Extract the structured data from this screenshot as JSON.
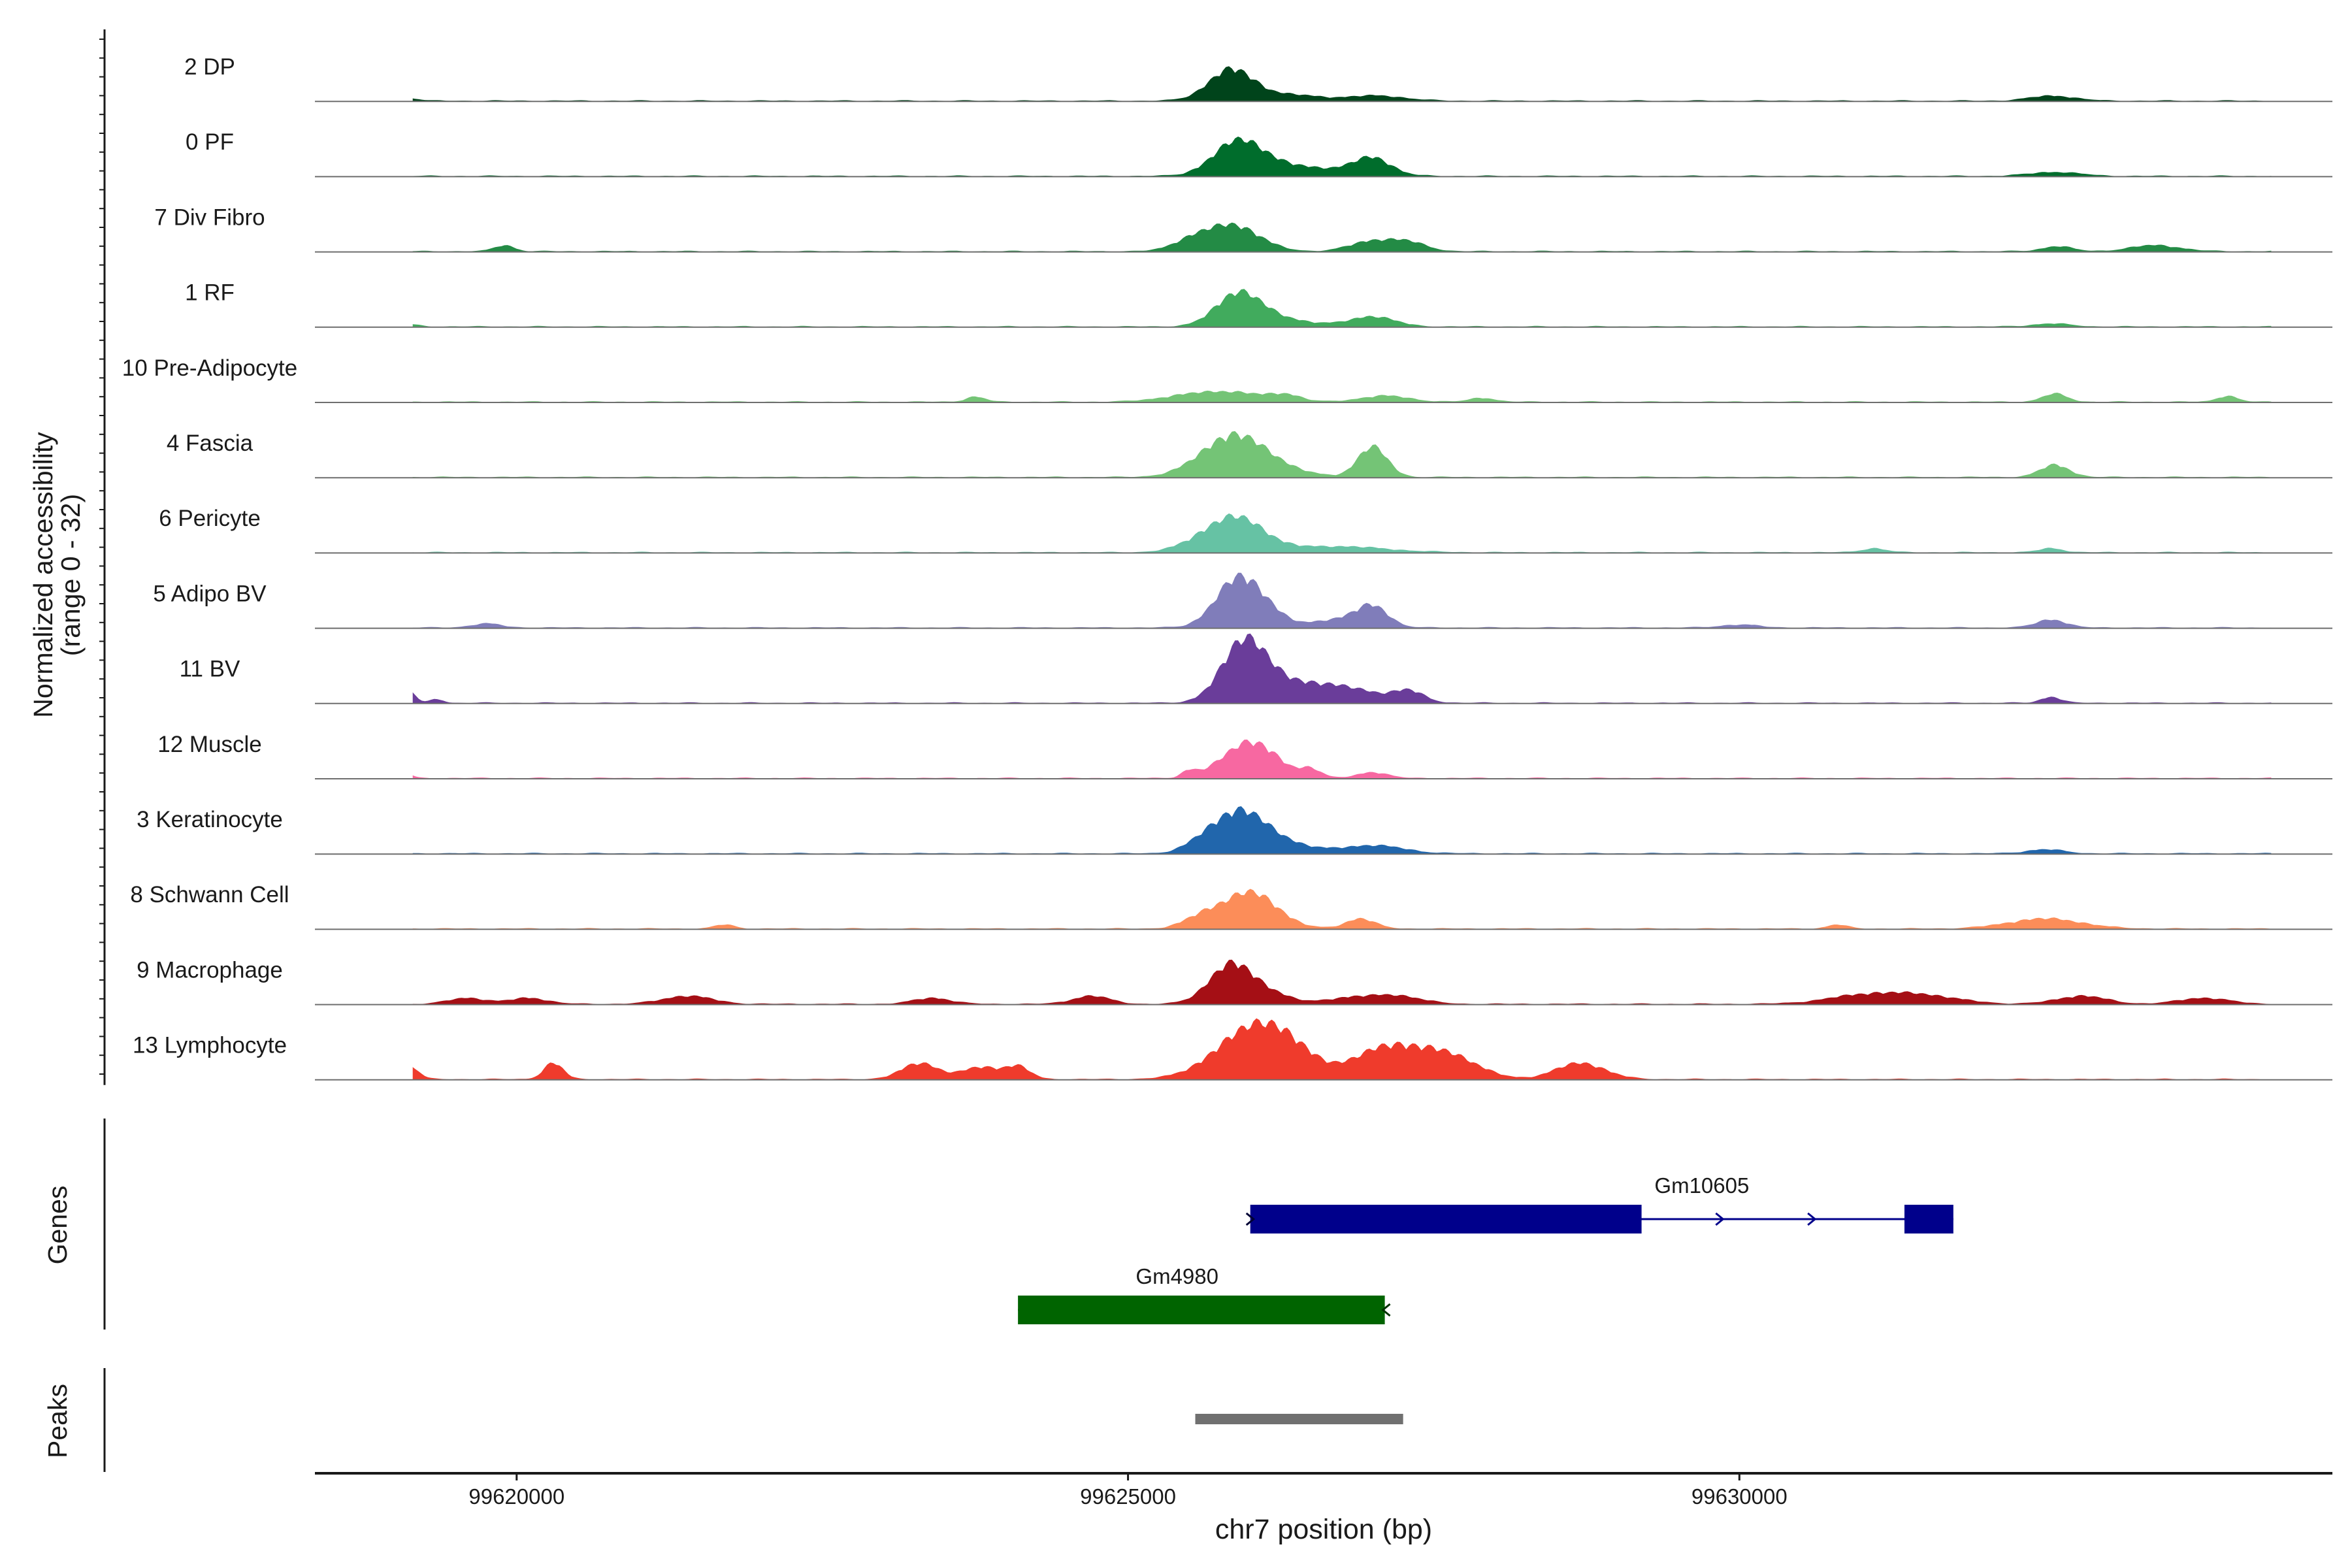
{
  "chart_data": {
    "type": "area",
    "title": "",
    "ylabel_line1": "Normalized accessibility",
    "ylabel_line2": "(range 0 - 32)",
    "xlabel": "chr7 position (bp)",
    "xlim": [
      99618350,
      99634850
    ],
    "ylim": [
      0,
      32
    ],
    "xticks": [
      99620000,
      99625000,
      99630000
    ],
    "xtick_labels": [
      "99620000",
      "99625000",
      "99630000"
    ],
    "tracks": [
      {
        "name": "2 DP",
        "color": "#00441b",
        "peaks": [
          [
            99625840,
            15,
            180
          ],
          [
            99626300,
            3,
            280
          ],
          [
            99627040,
            2.5,
            220
          ],
          [
            99632560,
            2.5,
            180
          ],
          [
            99619150,
            1.2,
            60
          ]
        ]
      },
      {
        "name": "0 PF",
        "color": "#006d2c",
        "peaks": [
          [
            99625900,
            16,
            200
          ],
          [
            99626250,
            4,
            300
          ],
          [
            99627000,
            8,
            150
          ],
          [
            99626700,
            2,
            300
          ],
          [
            99632580,
            2,
            200
          ]
        ]
      },
      {
        "name": "7 Div Fibro",
        "color": "#238b45",
        "peaks": [
          [
            99625850,
            13,
            220
          ],
          [
            99625500,
            4,
            150
          ],
          [
            99627000,
            5,
            180
          ],
          [
            99627300,
            4,
            150
          ],
          [
            99619900,
            3,
            80
          ],
          [
            99633400,
            3,
            200
          ],
          [
            99632600,
            2.5,
            120
          ]
        ]
      },
      {
        "name": "1 RF",
        "color": "#41ab5d",
        "peaks": [
          [
            99625900,
            15,
            180
          ],
          [
            99626200,
            4,
            280
          ],
          [
            99627000,
            5,
            180
          ],
          [
            99632550,
            1.5,
            150
          ],
          [
            99619150,
            1,
            60
          ]
        ]
      },
      {
        "name": "10 Pre-Adipocyte",
        "color": "#74c476",
        "peaks": [
          [
            99625500,
            3,
            250
          ],
          [
            99625900,
            4,
            250
          ],
          [
            99626300,
            3,
            120
          ],
          [
            99627100,
            3,
            200
          ],
          [
            99627900,
            2,
            100
          ],
          [
            99623750,
            2.5,
            80
          ],
          [
            99632580,
            4,
            100
          ],
          [
            99633990,
            3,
            80
          ]
        ]
      },
      {
        "name": "4 Fascia",
        "color": "#74c476",
        "peaks": [
          [
            99625850,
            18,
            260
          ],
          [
            99626100,
            4,
            300
          ],
          [
            99627000,
            15,
            120
          ],
          [
            99632580,
            6,
            120
          ]
        ]
      },
      {
        "name": "6 Pericyte",
        "color": "#66c2a4",
        "peaks": [
          [
            99625900,
            16,
            220
          ],
          [
            99625600,
            4,
            200
          ],
          [
            99626700,
            3,
            400
          ],
          [
            99631100,
            2,
            100
          ],
          [
            99632550,
            2,
            100
          ]
        ]
      },
      {
        "name": "5 Adipo BV",
        "color": "#807dba",
        "peaks": [
          [
            99625900,
            24,
            180
          ],
          [
            99626150,
            5,
            150
          ],
          [
            99626700,
            4,
            200
          ],
          [
            99627000,
            10,
            130
          ],
          [
            99619750,
            2,
            120
          ],
          [
            99632550,
            4,
            120
          ],
          [
            99630000,
            1.5,
            150
          ]
        ]
      },
      {
        "name": "11 BV",
        "color": "#6a3d9a",
        "peaks": [
          [
            99625950,
            28,
            180
          ],
          [
            99626300,
            8,
            300
          ],
          [
            99626800,
            6,
            300
          ],
          [
            99627300,
            5,
            120
          ],
          [
            99619100,
            7,
            60
          ],
          [
            99632550,
            3,
            80
          ],
          [
            99619350,
            2,
            50
          ]
        ]
      },
      {
        "name": "12 Muscle",
        "color": "#f768a1",
        "peaks": [
          [
            99626000,
            18,
            220
          ],
          [
            99625500,
            3,
            60
          ],
          [
            99626500,
            4,
            80
          ],
          [
            99627000,
            3,
            120
          ],
          [
            99619100,
            2,
            50
          ]
        ]
      },
      {
        "name": "3 Keratinocyte",
        "color": "#2166ac",
        "peaks": [
          [
            99625900,
            18,
            200
          ],
          [
            99626200,
            6,
            250
          ],
          [
            99627000,
            4,
            250
          ],
          [
            99625600,
            4,
            150
          ],
          [
            99632500,
            2,
            150
          ]
        ]
      },
      {
        "name": "8 Schwann Cell",
        "color": "#fc8d59",
        "peaks": [
          [
            99626000,
            18,
            220
          ],
          [
            99625600,
            5,
            150
          ],
          [
            99626900,
            5,
            120
          ],
          [
            99632500,
            5,
            300
          ],
          [
            99621700,
            2,
            80
          ],
          [
            99630800,
            2,
            80
          ]
        ]
      },
      {
        "name": "9 Macrophage",
        "color": "#a50f15",
        "peaks": [
          [
            99625850,
            20,
            180
          ],
          [
            99626200,
            4,
            150
          ],
          [
            99621400,
            4,
            200
          ],
          [
            99624700,
            4,
            150
          ],
          [
            99626800,
            3,
            200
          ],
          [
            99627200,
            4,
            200
          ],
          [
            99631000,
            4,
            300
          ],
          [
            99631500,
            4,
            300
          ],
          [
            99632800,
            4,
            200
          ],
          [
            99633800,
            3,
            200
          ],
          [
            99619600,
            3,
            150
          ],
          [
            99620100,
            3,
            150
          ],
          [
            99623400,
            3,
            150
          ]
        ]
      },
      {
        "name": "13 Lymphocyte",
        "color": "#ef3b2c",
        "peaks": [
          [
            99626000,
            22,
            300
          ],
          [
            99626300,
            10,
            250
          ],
          [
            99627100,
            15,
            250
          ],
          [
            99627600,
            12,
            250
          ],
          [
            99628700,
            8,
            200
          ],
          [
            99620300,
            8,
            80
          ],
          [
            99619100,
            8,
            80
          ],
          [
            99623300,
            8,
            150
          ],
          [
            99623800,
            6,
            150
          ],
          [
            99624100,
            6,
            100
          ]
        ]
      }
    ],
    "genes_label": "Genes",
    "genes": [
      {
        "name": "Gm10605",
        "color": "#00008b",
        "strand": "+",
        "start": 99626000,
        "end": 99631750,
        "exons": [
          [
            99626000,
            99629200
          ],
          [
            99631350,
            99631750
          ]
        ]
      },
      {
        "name": "Gm4980",
        "color": "#006400",
        "strand": "-",
        "start": 99624100,
        "end": 99627100,
        "exons": [
          [
            99624100,
            99627100
          ]
        ]
      }
    ],
    "peaks_label": "Peaks",
    "peak_regions": [
      {
        "start": 99625550,
        "end": 99627250,
        "color": "#707070"
      }
    ]
  }
}
